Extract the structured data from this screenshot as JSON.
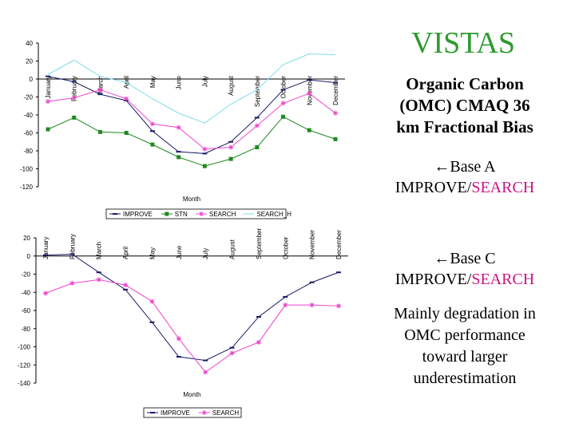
{
  "slide": {
    "heading": "VISTAS",
    "subtitle_lines": [
      "Organic Carbon",
      "(OMC) CMAQ 36",
      "km Fractional Bias"
    ],
    "case_a": {
      "arrow": "←",
      "label": "Base A",
      "improve": "IMPROVE/",
      "search": "SEARCH"
    },
    "case_c": {
      "arrow": "←",
      "label": "Base C",
      "improve": "IMPROVE/",
      "search": "SEARCH"
    },
    "note_lines": [
      "Mainly degradation in",
      "OMC performance",
      "toward larger",
      "underestimation"
    ]
  },
  "chart_data": [
    {
      "type": "line",
      "title": "",
      "xlabel": "Month",
      "ylabel": "",
      "ylim": [
        -120,
        40
      ],
      "yticks": [
        40,
        20,
        0,
        -20,
        -40,
        -60,
        -80,
        -100,
        -120
      ],
      "categories": [
        "January",
        "February",
        "March",
        "April",
        "May",
        "June",
        "July",
        "August",
        "September",
        "October",
        "November",
        "December"
      ],
      "legend_position": "bottom",
      "series": [
        {
          "name": "IMPROVE",
          "color": "#1a1a66",
          "marker": "dash",
          "values": [
            3,
            -3,
            -17,
            -24,
            -58,
            -81,
            -83,
            -70,
            -43,
            -12,
            -1,
            -4
          ]
        },
        {
          "name": "STN",
          "color": "#1f8a1f",
          "marker": "square",
          "values": [
            -56,
            -43,
            -59,
            -60,
            -73,
            -87,
            -97,
            -89,
            -76,
            -42,
            -57,
            -67
          ]
        },
        {
          "name": "SEARCH",
          "color": "#ee44cc",
          "marker": "star",
          "values": [
            -25,
            -21,
            -12,
            -22,
            -50,
            -54,
            -78,
            -76,
            -52,
            -27,
            -16,
            -38
          ]
        },
        {
          "name": "SEARCH_H",
          "color": "#7fdcee",
          "marker": "none",
          "values": [
            5,
            21,
            3,
            -4,
            -22,
            -38,
            -49,
            -28,
            -12,
            16,
            28,
            27
          ]
        }
      ]
    },
    {
      "type": "line",
      "title": "",
      "xlabel": "Month",
      "ylabel": "",
      "ylim": [
        -140,
        20
      ],
      "yticks": [
        20,
        0,
        -20,
        -40,
        -60,
        -80,
        -100,
        -120,
        -140
      ],
      "categories": [
        "January",
        "February",
        "March",
        "April",
        "May",
        "June",
        "July",
        "August",
        "September",
        "October",
        "November",
        "December"
      ],
      "legend_position": "bottom",
      "series": [
        {
          "name": "IMPROVE",
          "color": "#1a1a66",
          "marker": "dash",
          "values": [
            1,
            2,
            -18,
            -37,
            -73,
            -111,
            -115,
            -101,
            -67,
            -45,
            -29,
            -18
          ]
        },
        {
          "name": "SEARCH",
          "color": "#ee44cc",
          "marker": "star",
          "values": [
            -41,
            -30,
            -26,
            -32,
            -50,
            -91,
            -128,
            -107,
            -95,
            -54,
            -54,
            -55
          ]
        }
      ]
    }
  ]
}
